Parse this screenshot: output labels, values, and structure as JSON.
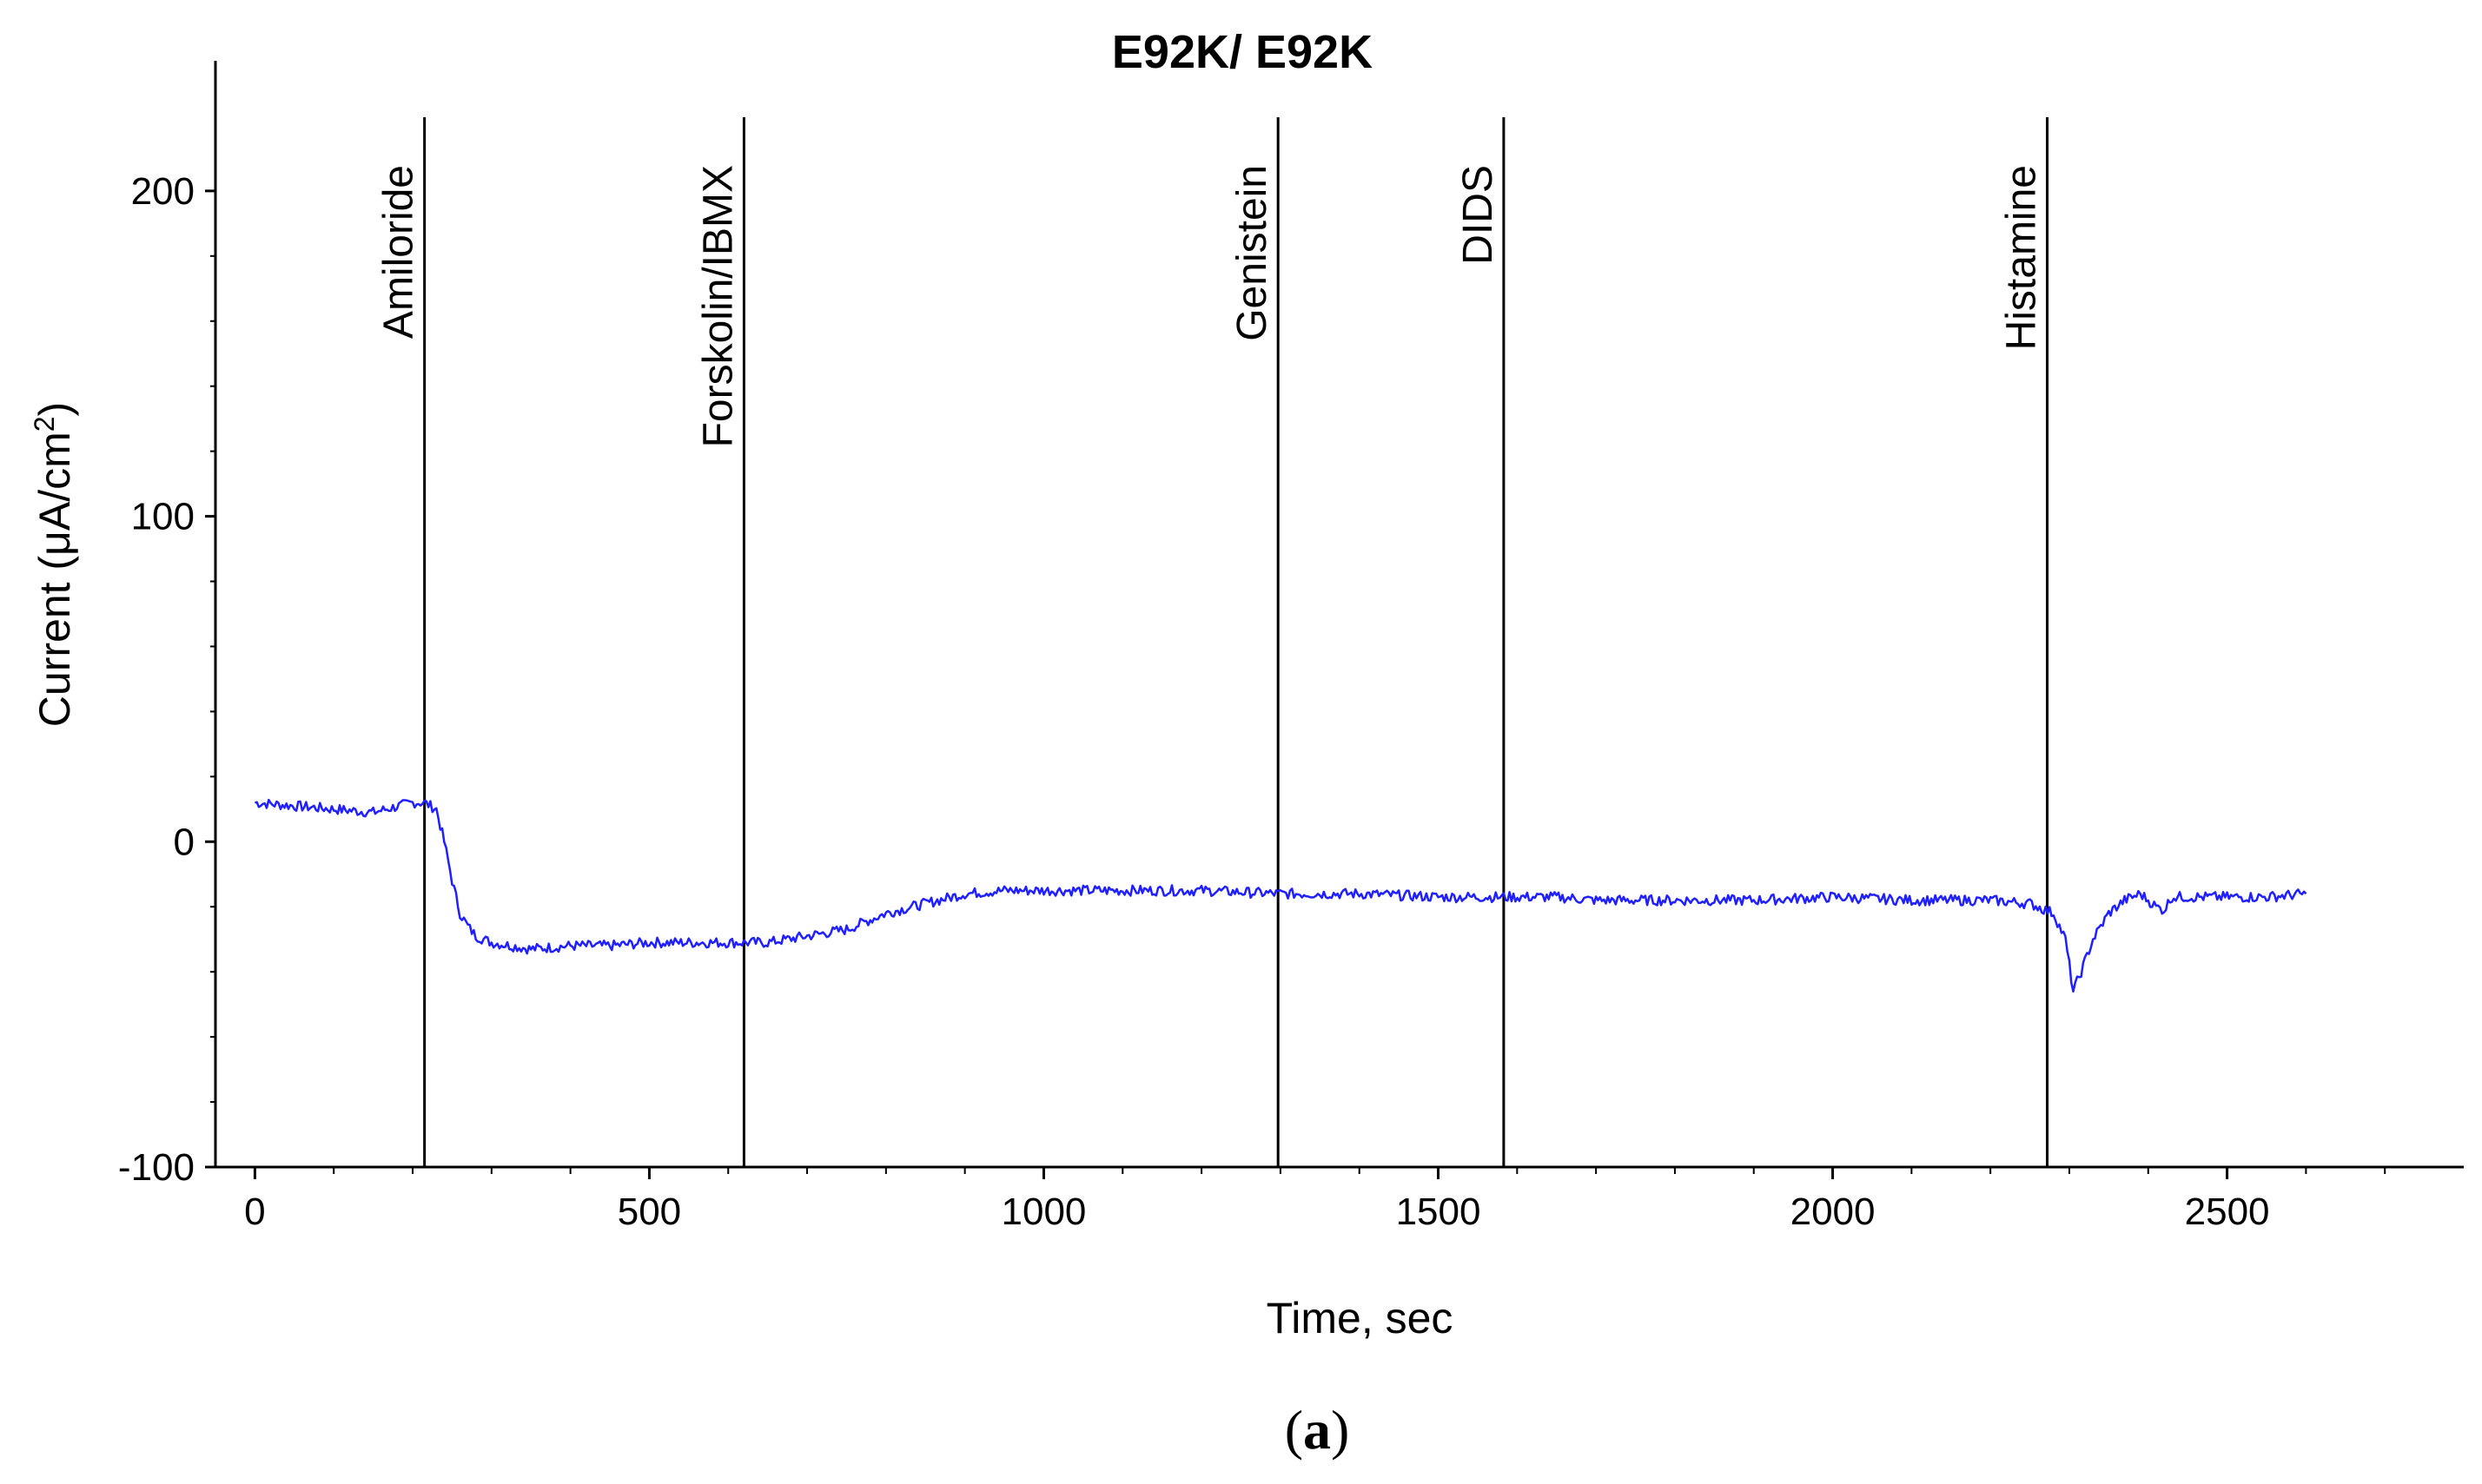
{
  "chart_data": {
    "type": "line",
    "title": "E92K/ E92K",
    "xlabel": "Time, sec",
    "ylabel_main": "Current (μA/cm",
    "ylabel_sup": "2",
    "ylabel_close": ")",
    "xlim": [
      -50,
      2800
    ],
    "ylim": [
      -100,
      240
    ],
    "xticks": [
      0,
      500,
      1000,
      1500,
      2000,
      2500
    ],
    "yticks": [
      -100,
      0,
      100,
      200
    ],
    "grid": false,
    "line_color": "#1f1fff",
    "events": [
      {
        "label": "Amiloride",
        "x": 215
      },
      {
        "label": "Forskolin/IBMX",
        "x": 620
      },
      {
        "label": "Genistein",
        "x": 1297
      },
      {
        "label": "DIDS",
        "x": 1583
      },
      {
        "label": "Histamine",
        "x": 2272
      }
    ],
    "series": [
      {
        "x": [
          0,
          50,
          100,
          150,
          200,
          215,
          230,
          240,
          250,
          260,
          270,
          280,
          300,
          350,
          400,
          450,
          500,
          550,
          600,
          650,
          700,
          750,
          800,
          850,
          900,
          950,
          1000,
          1050,
          1100,
          1200,
          1297,
          1350,
          1400,
          1500,
          1583,
          1650,
          1700,
          1800,
          1900,
          2000,
          2100,
          2200,
          2250,
          2280,
          2295,
          2305,
          2315,
          2330,
          2350,
          2370,
          2390,
          2410,
          2420,
          2430,
          2500,
          2550,
          2600
        ],
        "y": [
          12,
          11,
          10,
          9,
          12,
          12,
          10,
          0,
          -12,
          -22,
          -26,
          -29,
          -31,
          -33,
          -32,
          -32,
          -31,
          -31,
          -31,
          -31,
          -29,
          -27,
          -22,
          -19,
          -16,
          -15,
          -15,
          -15,
          -15,
          -15,
          -16,
          -16,
          -16,
          -17,
          -17,
          -17,
          -18,
          -18,
          -18,
          -17,
          -18,
          -18,
          -19,
          -22,
          -30,
          -46,
          -40,
          -30,
          -22,
          -18,
          -16,
          -20,
          -21,
          -17,
          -17,
          -17,
          -16
        ]
      }
    ]
  },
  "panel_label": {
    "open": "(",
    "letter": "a",
    "close": ")"
  }
}
